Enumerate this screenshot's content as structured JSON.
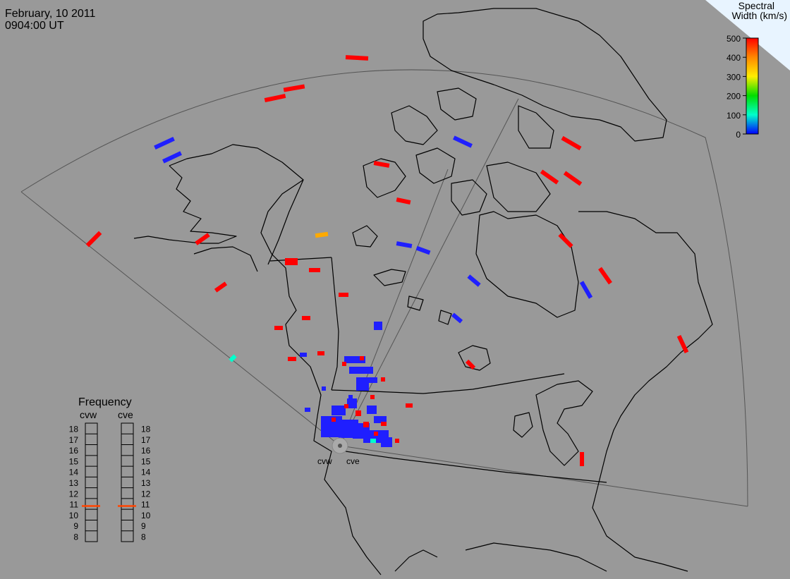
{
  "header": {
    "date": "February, 10 2011",
    "time": "0904:00 UT"
  },
  "colorbar": {
    "title_line1": "Spectral",
    "title_line2": "Width (km/s)",
    "ticks": [
      "500",
      "400",
      "300",
      "200",
      "100",
      "0"
    ],
    "stops": [
      "#ff0000",
      "#ff8800",
      "#ffee00",
      "#00dd00",
      "#00ffcc",
      "#0000ff"
    ]
  },
  "frequency": {
    "title": "Frequency",
    "radars": [
      "cvw",
      "cve"
    ],
    "levels": [
      "18",
      "17",
      "16",
      "15",
      "14",
      "13",
      "12",
      "11",
      "10",
      "9",
      "8"
    ],
    "marker_level": "11",
    "marker_color": "#ff4400"
  },
  "radars": {
    "site_labels": [
      "cvw",
      "cve"
    ]
  },
  "colors": {
    "background": "#999999",
    "red": "#ff0000",
    "blue": "#1f1fff",
    "orange": "#ffaa00",
    "cyan": "#00ffcc",
    "corner": "#e8f4ff"
  }
}
